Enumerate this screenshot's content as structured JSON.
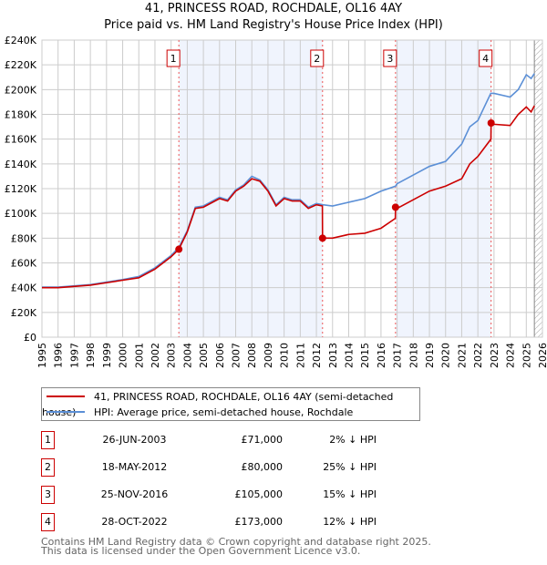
{
  "title": "41, PRINCESS ROAD, ROCHDALE, OL16 4AY",
  "subtitle": "Price paid vs. HM Land Registry's House Price Index (HPI)",
  "chart_data": {
    "type": "line",
    "xlim": [
      1995,
      2026
    ],
    "ylim": [
      0,
      240000
    ],
    "yticks": [
      "£0",
      "£20K",
      "£40K",
      "£60K",
      "£80K",
      "£100K",
      "£120K",
      "£140K",
      "£160K",
      "£180K",
      "£200K",
      "£220K",
      "£240K"
    ],
    "xticks": [
      "1995",
      "1996",
      "1997",
      "1998",
      "1999",
      "2000",
      "2001",
      "2002",
      "2003",
      "2004",
      "2005",
      "2006",
      "2007",
      "2008",
      "2009",
      "2010",
      "2011",
      "2012",
      "2013",
      "2014",
      "2015",
      "2016",
      "2017",
      "2018",
      "2019",
      "2020",
      "2021",
      "2022",
      "2023",
      "2024",
      "2025",
      "2026"
    ],
    "series": [
      {
        "name": "41, PRINCESS ROAD, ROCHDALE, OL16 4AY (semi-detached house)",
        "color": "#cc0000",
        "x": [
          1995,
          1996,
          1997,
          1998,
          1999,
          2000,
          2001,
          2002,
          2003,
          2003.48,
          2004,
          2004.5,
          2005,
          2006,
          2006.5,
          2007,
          2007.5,
          2008,
          2008.5,
          2009,
          2009.5,
          2010,
          2010.5,
          2011,
          2011.5,
          2012,
          2012.37,
          2012.38,
          2013,
          2014,
          2015,
          2016,
          2016.89,
          2016.9,
          2017,
          2018,
          2019,
          2020,
          2021,
          2021.5,
          2022,
          2022.81,
          2022.82,
          2023,
          2024,
          2024.5,
          2025,
          2025.3,
          2025.5
        ],
        "y": [
          40000,
          40000,
          41000,
          42000,
          44000,
          46000,
          48000,
          55000,
          65000,
          71000,
          85000,
          104000,
          105000,
          112000,
          110000,
          118000,
          122000,
          128000,
          126000,
          118000,
          106000,
          112000,
          110000,
          110000,
          104000,
          107000,
          106000,
          80000,
          80000,
          83000,
          84000,
          88000,
          96000,
          105000,
          104000,
          111000,
          118000,
          122000,
          128000,
          140000,
          146000,
          160000,
          173000,
          172000,
          171000,
          180000,
          186000,
          182000,
          187000
        ]
      },
      {
        "name": "HPI: Average price, semi-detached house, Rochdale",
        "color": "#5b8fd6",
        "x": [
          1995,
          1996,
          1997,
          1998,
          1999,
          2000,
          2001,
          2002,
          2003,
          2003.48,
          2004,
          2004.5,
          2005,
          2006,
          2006.5,
          2007,
          2007.5,
          2008,
          2008.5,
          2009,
          2009.5,
          2010,
          2010.5,
          2011,
          2011.5,
          2012,
          2012.4,
          2013,
          2014,
          2015,
          2016,
          2016.9,
          2017,
          2018,
          2019,
          2020,
          2021,
          2021.5,
          2022,
          2022.8,
          2023,
          2024,
          2024.5,
          2025,
          2025.3,
          2025.5
        ],
        "y": [
          40500,
          40500,
          41500,
          42500,
          44500,
          46500,
          49000,
          56000,
          66000,
          72500,
          86000,
          105000,
          106000,
          113000,
          111000,
          119000,
          123000,
          130000,
          127000,
          119000,
          107000,
          113000,
          111000,
          111000,
          105000,
          108000,
          107000,
          106000,
          109000,
          112000,
          118000,
          122000,
          124000,
          131000,
          138000,
          142000,
          156000,
          170000,
          175000,
          197000,
          197000,
          194000,
          200000,
          212000,
          209000,
          213000
        ]
      }
    ],
    "sales": [
      {
        "label": "1",
        "x": 2003.48,
        "y": 71000
      },
      {
        "label": "2",
        "x": 2012.38,
        "y": 80000
      },
      {
        "label": "3",
        "x": 2016.9,
        "y": 105000
      },
      {
        "label": "4",
        "x": 2022.82,
        "y": 173000
      }
    ],
    "shaded": [
      [
        2003.48,
        2012.38
      ],
      [
        2016.9,
        2022.82
      ]
    ],
    "hatched_from": 2025.5
  },
  "legend": [
    "41, PRINCESS ROAD, ROCHDALE, OL16 4AY (semi-detached house)",
    "HPI: Average price, semi-detached house, Rochdale"
  ],
  "table": [
    {
      "num": "1",
      "date": "26-JUN-2003",
      "price": "£71,000",
      "hpi": "2% ↓ HPI"
    },
    {
      "num": "2",
      "date": "18-MAY-2012",
      "price": "£80,000",
      "hpi": "25% ↓ HPI"
    },
    {
      "num": "3",
      "date": "25-NOV-2016",
      "price": "£105,000",
      "hpi": "15% ↓ HPI"
    },
    {
      "num": "4",
      "date": "28-OCT-2022",
      "price": "£173,000",
      "hpi": "12% ↓ HPI"
    }
  ],
  "footer": [
    "Contains HM Land Registry data © Crown copyright and database right 2025.",
    "This data is licensed under the Open Government Licence v3.0."
  ]
}
